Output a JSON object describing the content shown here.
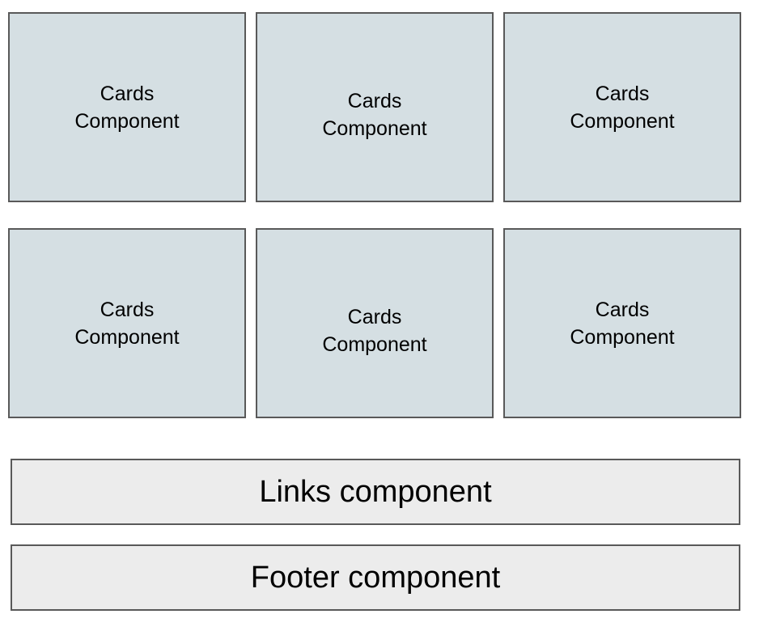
{
  "cards": [
    {
      "line1": "Cards",
      "line2": "Component"
    },
    {
      "line1": "Cards",
      "line2": "Component"
    },
    {
      "line1": "Cards",
      "line2": "Component"
    },
    {
      "line1": "Cards",
      "line2": "Component"
    },
    {
      "line1": "Cards",
      "line2": "Component"
    },
    {
      "line1": "Cards",
      "line2": "Component"
    }
  ],
  "links": {
    "label": "Links component"
  },
  "footer": {
    "label": "Footer component"
  },
  "colors": {
    "card_fill": "#d5dfe3",
    "band_fill": "#ececec",
    "border": "#595959"
  }
}
